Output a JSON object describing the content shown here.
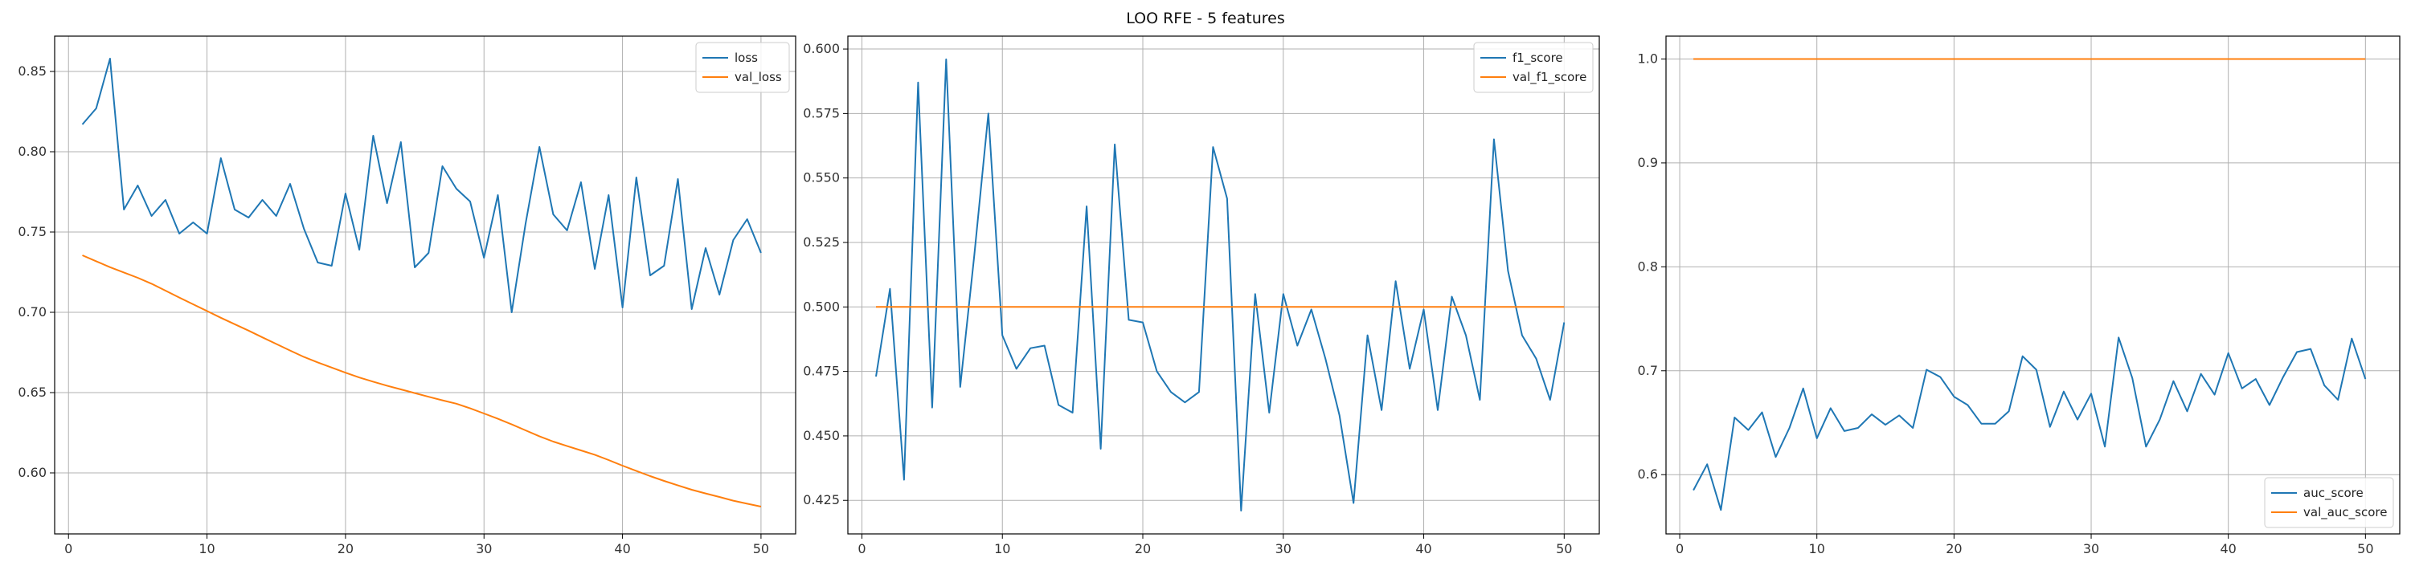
{
  "figure": {
    "suptitle": "LOO RFE - 5 features"
  },
  "colors": {
    "train": "#1f77b4",
    "val": "#ff7f0e",
    "grid": "#b0b0b0",
    "axis": "#000000"
  },
  "chart_data": [
    {
      "type": "line",
      "x": [
        1,
        2,
        3,
        4,
        5,
        6,
        7,
        8,
        9,
        10,
        11,
        12,
        13,
        14,
        15,
        16,
        17,
        18,
        19,
        20,
        21,
        22,
        23,
        24,
        25,
        26,
        27,
        28,
        29,
        30,
        31,
        32,
        33,
        34,
        35,
        36,
        37,
        38,
        39,
        40,
        41,
        42,
        43,
        44,
        45,
        46,
        47,
        48,
        49,
        50
      ],
      "xlim": [
        -1,
        52.5
      ],
      "ylim": [
        0.562,
        0.872
      ],
      "xticks": [
        0,
        10,
        20,
        30,
        40,
        50
      ],
      "yticks": [
        0.6,
        0.65,
        0.7,
        0.75,
        0.8,
        0.85
      ],
      "ytick_labels": [
        "0.60",
        "0.65",
        "0.70",
        "0.75",
        "0.80",
        "0.85"
      ],
      "grid": true,
      "legend": "top-right",
      "series": [
        {
          "name": "loss",
          "color": "#1f77b4",
          "values": [
            0.817,
            0.827,
            0.858,
            0.764,
            0.779,
            0.76,
            0.77,
            0.749,
            0.756,
            0.749,
            0.796,
            0.764,
            0.759,
            0.77,
            0.76,
            0.78,
            0.752,
            0.731,
            0.729,
            0.774,
            0.739,
            0.81,
            0.768,
            0.806,
            0.728,
            0.737,
            0.791,
            0.777,
            0.769,
            0.734,
            0.773,
            0.7,
            0.755,
            0.803,
            0.761,
            0.751,
            0.781,
            0.727,
            0.773,
            0.703,
            0.784,
            0.723,
            0.729,
            0.783,
            0.702,
            0.74,
            0.711,
            0.745,
            0.758,
            0.737
          ]
        },
        {
          "name": "val_loss",
          "color": "#ff7f0e",
          "values": [
            0.7355,
            0.7318,
            0.7281,
            0.7248,
            0.7215,
            0.7178,
            0.7135,
            0.7092,
            0.705,
            0.7008,
            0.6966,
            0.6926,
            0.6886,
            0.6844,
            0.6803,
            0.6762,
            0.6722,
            0.6688,
            0.6656,
            0.6624,
            0.6594,
            0.6568,
            0.6543,
            0.652,
            0.6497,
            0.6474,
            0.6452,
            0.6431,
            0.6402,
            0.637,
            0.6337,
            0.6302,
            0.6265,
            0.6228,
            0.6195,
            0.6167,
            0.614,
            0.6113,
            0.608,
            0.6045,
            0.6012,
            0.598,
            0.595,
            0.5922,
            0.5895,
            0.5872,
            0.585,
            0.5827,
            0.5808,
            0.579
          ]
        }
      ]
    },
    {
      "type": "line",
      "x": [
        1,
        2,
        3,
        4,
        5,
        6,
        7,
        8,
        9,
        10,
        11,
        12,
        13,
        14,
        15,
        16,
        17,
        18,
        19,
        20,
        21,
        22,
        23,
        24,
        25,
        26,
        27,
        28,
        29,
        30,
        31,
        32,
        33,
        34,
        35,
        36,
        37,
        38,
        39,
        40,
        41,
        42,
        43,
        44,
        45,
        46,
        47,
        48,
        49,
        50
      ],
      "xlim": [
        -1,
        52.5
      ],
      "ylim": [
        0.412,
        0.605
      ],
      "xticks": [
        0,
        10,
        20,
        30,
        40,
        50
      ],
      "yticks": [
        0.425,
        0.45,
        0.475,
        0.5,
        0.525,
        0.55,
        0.575,
        0.6
      ],
      "ytick_labels": [
        "0.425",
        "0.450",
        "0.475",
        "0.500",
        "0.525",
        "0.550",
        "0.575",
        "0.600"
      ],
      "grid": true,
      "legend": "top-right",
      "series": [
        {
          "name": "f1_score",
          "color": "#1f77b4",
          "values": [
            0.473,
            0.507,
            0.433,
            0.587,
            0.461,
            0.596,
            0.469,
            0.52,
            0.575,
            0.489,
            0.476,
            0.484,
            0.485,
            0.462,
            0.459,
            0.539,
            0.445,
            0.563,
            0.495,
            0.494,
            0.475,
            0.467,
            0.463,
            0.467,
            0.562,
            0.542,
            0.421,
            0.505,
            0.459,
            0.505,
            0.485,
            0.499,
            0.48,
            0.458,
            0.424,
            0.489,
            0.46,
            0.51,
            0.476,
            0.499,
            0.46,
            0.504,
            0.489,
            0.464,
            0.565,
            0.514,
            0.489,
            0.48,
            0.464,
            0.494
          ]
        },
        {
          "name": "val_f1_score",
          "color": "#ff7f0e",
          "values": [
            0.5,
            0.5,
            0.5,
            0.5,
            0.5,
            0.5,
            0.5,
            0.5,
            0.5,
            0.5,
            0.5,
            0.5,
            0.5,
            0.5,
            0.5,
            0.5,
            0.5,
            0.5,
            0.5,
            0.5,
            0.5,
            0.5,
            0.5,
            0.5,
            0.5,
            0.5,
            0.5,
            0.5,
            0.5,
            0.5,
            0.5,
            0.5,
            0.5,
            0.5,
            0.5,
            0.5,
            0.5,
            0.5,
            0.5,
            0.5,
            0.5,
            0.5,
            0.5,
            0.5,
            0.5,
            0.5,
            0.5,
            0.5,
            0.5,
            0.5
          ]
        }
      ]
    },
    {
      "type": "line",
      "x": [
        1,
        2,
        3,
        4,
        5,
        6,
        7,
        8,
        9,
        10,
        11,
        12,
        13,
        14,
        15,
        16,
        17,
        18,
        19,
        20,
        21,
        22,
        23,
        24,
        25,
        26,
        27,
        28,
        29,
        30,
        31,
        32,
        33,
        34,
        35,
        36,
        37,
        38,
        39,
        40,
        41,
        42,
        43,
        44,
        45,
        46,
        47,
        48,
        49,
        50
      ],
      "xlim": [
        -1,
        52.5
      ],
      "ylim": [
        0.543,
        1.022
      ],
      "xticks": [
        0,
        10,
        20,
        30,
        40,
        50
      ],
      "yticks": [
        0.6,
        0.7,
        0.8,
        0.9,
        1.0
      ],
      "ytick_labels": [
        "0.6",
        "0.7",
        "0.8",
        "0.9",
        "1.0"
      ],
      "grid": true,
      "legend": "bottom-right",
      "series": [
        {
          "name": "auc_score",
          "color": "#1f77b4",
          "values": [
            0.585,
            0.61,
            0.566,
            0.655,
            0.643,
            0.66,
            0.617,
            0.645,
            0.683,
            0.635,
            0.664,
            0.642,
            0.645,
            0.658,
            0.648,
            0.657,
            0.645,
            0.701,
            0.694,
            0.675,
            0.667,
            0.649,
            0.649,
            0.661,
            0.714,
            0.701,
            0.646,
            0.68,
            0.653,
            0.678,
            0.627,
            0.732,
            0.693,
            0.627,
            0.653,
            0.69,
            0.661,
            0.697,
            0.677,
            0.717,
            0.683,
            0.692,
            0.667,
            0.694,
            0.718,
            0.721,
            0.686,
            0.672,
            0.731,
            0.692
          ]
        },
        {
          "name": "val_auc_score",
          "color": "#ff7f0e",
          "values": [
            1,
            1,
            1,
            1,
            1,
            1,
            1,
            1,
            1,
            1,
            1,
            1,
            1,
            1,
            1,
            1,
            1,
            1,
            1,
            1,
            1,
            1,
            1,
            1,
            1,
            1,
            1,
            1,
            1,
            1,
            1,
            1,
            1,
            1,
            1,
            1,
            1,
            1,
            1,
            1,
            1,
            1,
            1,
            1,
            1,
            1,
            1,
            1,
            1,
            1
          ]
        }
      ]
    }
  ]
}
